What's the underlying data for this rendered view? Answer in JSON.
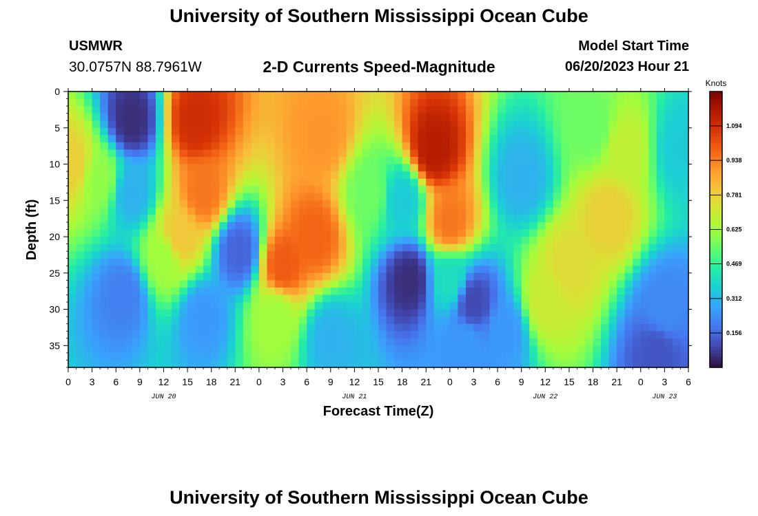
{
  "title": "University of Southern Mississippi Ocean Cube",
  "footer_title": "University of Southern Mississippi Ocean Cube",
  "station": {
    "name": "USMWR",
    "coords": "30.0757N  88.7961W"
  },
  "subtitle": "2-D Currents Speed-Magnitude",
  "model_start": {
    "label": "Model Start Time",
    "value": "06/20/2023 Hour 21"
  },
  "colors": {
    "scale": [
      "#30123b",
      "#4145ab",
      "#4675ed",
      "#39a2fc",
      "#1bcfd4",
      "#24eca6",
      "#61fc6c",
      "#a4fc3b",
      "#d1e834",
      "#f3c63a",
      "#fe9b2d",
      "#f36315",
      "#d93806",
      "#b11901",
      "#7a0402"
    ]
  },
  "chart_data": {
    "type": "heatmap",
    "title": "2-D Currents Speed-Magnitude",
    "xlabel": "Forecast Time(Z)",
    "ylabel": "Depth (ft)",
    "x_tick_labels": [
      "0",
      "3",
      "6",
      "9",
      "12",
      "15",
      "18",
      "21",
      "0",
      "3",
      "6",
      "9",
      "12",
      "15",
      "18",
      "21",
      "0",
      "3",
      "6",
      "9",
      "12",
      "15",
      "18",
      "21",
      "0",
      "3",
      "6"
    ],
    "x_range_hours": [
      0,
      78
    ],
    "date_labels": [
      {
        "text": "JUN 20",
        "hour": 12
      },
      {
        "text": "JUN 21",
        "hour": 36
      },
      {
        "text": "JUN 22",
        "hour": 60
      },
      {
        "text": "JUN 23",
        "hour": 75
      }
    ],
    "y_ticks": [
      0,
      5,
      10,
      15,
      20,
      25,
      30,
      35
    ],
    "y_range": [
      0,
      38
    ],
    "colorbar": {
      "title": "Knots",
      "ticks": [
        "0.156",
        "0.312",
        "0.469",
        "0.625",
        "0.781",
        "0.938",
        "1.094"
      ],
      "tick_values": [
        0.156,
        0.312,
        0.469,
        0.625,
        0.781,
        0.938,
        1.094
      ],
      "range": [
        0,
        1.25
      ]
    },
    "field_features": [
      {
        "hour": 0.5,
        "depth": 10,
        "value": 0.78
      },
      {
        "hour": 4,
        "depth": 12,
        "value": 0.6
      },
      {
        "hour": 8,
        "depth": 4,
        "value": 0.05
      },
      {
        "hour": 8,
        "depth": 14,
        "value": 0.3
      },
      {
        "hour": 7,
        "depth": 28,
        "value": 0.2
      },
      {
        "hour": 16,
        "depth": 4,
        "value": 1.1
      },
      {
        "hour": 17,
        "depth": 14,
        "value": 0.95
      },
      {
        "hour": 14,
        "depth": 20,
        "value": 0.8
      },
      {
        "hour": 12,
        "depth": 23,
        "value": 0.62
      },
      {
        "hour": 21.5,
        "depth": 22,
        "value": 0.15
      },
      {
        "hour": 17,
        "depth": 31,
        "value": 0.25
      },
      {
        "hour": 26,
        "depth": 31,
        "value": 0.62
      },
      {
        "hour": 32,
        "depth": 6,
        "value": 0.9
      },
      {
        "hour": 31,
        "depth": 20,
        "value": 0.98
      },
      {
        "hour": 27,
        "depth": 24,
        "value": 1.0
      },
      {
        "hour": 33,
        "depth": 34,
        "value": 0.3
      },
      {
        "hour": 38,
        "depth": 14,
        "value": 0.55
      },
      {
        "hour": 43,
        "depth": 26,
        "value": 0.05
      },
      {
        "hour": 42,
        "depth": 15,
        "value": 0.35
      },
      {
        "hour": 46,
        "depth": 8,
        "value": 1.15
      },
      {
        "hour": 48,
        "depth": 18,
        "value": 0.95
      },
      {
        "hour": 48,
        "depth": 26,
        "value": 0.4
      },
      {
        "hour": 51,
        "depth": 29,
        "value": 0.1
      },
      {
        "hour": 50,
        "depth": 35,
        "value": 0.25
      },
      {
        "hour": 57,
        "depth": 12,
        "value": 0.3
      },
      {
        "hour": 55,
        "depth": 33,
        "value": 0.25
      },
      {
        "hour": 60,
        "depth": 29,
        "value": 0.7
      },
      {
        "hour": 63,
        "depth": 24,
        "value": 0.75
      },
      {
        "hour": 68,
        "depth": 17,
        "value": 0.78
      },
      {
        "hour": 70,
        "depth": 8,
        "value": 0.68
      },
      {
        "hour": 66,
        "depth": 5,
        "value": 0.55
      },
      {
        "hour": 75,
        "depth": 30,
        "value": 0.22
      },
      {
        "hour": 77,
        "depth": 8,
        "value": 0.35
      },
      {
        "hour": 74,
        "depth": 36,
        "value": 0.12
      }
    ]
  }
}
